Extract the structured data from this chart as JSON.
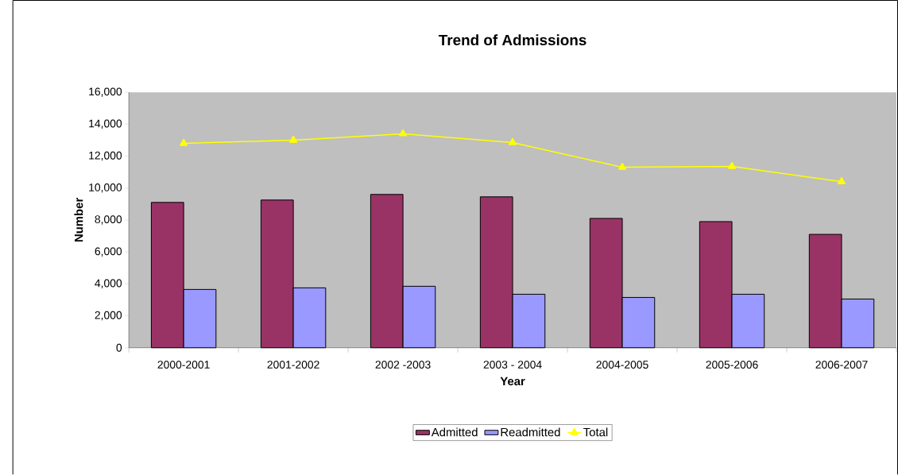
{
  "chart_data": {
    "type": "bar",
    "title": "Trend of Admissions",
    "xlabel": "Year",
    "ylabel": "Number",
    "categories": [
      "2000-2001",
      "2001-2002",
      "2002 -2003",
      "2003 - 2004",
      "2004-2005",
      "2005-2006",
      "2006-2007"
    ],
    "series": [
      {
        "name": "Admitted",
        "color": "#993366",
        "values": [
          9100,
          9250,
          9600,
          9450,
          8100,
          7900,
          7100
        ]
      },
      {
        "name": "Readmitted",
        "color": "#9999ff",
        "values": [
          3650,
          3750,
          3850,
          3350,
          3150,
          3350,
          3050
        ]
      },
      {
        "name": "Total",
        "type": "line",
        "color": "#ffff00",
        "marker": "triangle",
        "values": [
          12800,
          13000,
          13400,
          12850,
          11300,
          11350,
          10400
        ]
      }
    ],
    "ylim": [
      0,
      16000
    ],
    "yticks": [
      0,
      {
        "value": 2000,
        "label": "2,000"
      },
      {
        "value": 4000,
        "label": "4,000"
      },
      {
        "value": 6000,
        "label": "6,000"
      },
      {
        "value": 8000,
        "label": "8,000"
      },
      {
        "value": 10000,
        "label": "10,000"
      },
      {
        "value": 12000,
        "label": "12,000"
      },
      {
        "value": 14000,
        "label": "14,000"
      },
      {
        "value": 16000,
        "label": "16,000"
      }
    ],
    "legend": "bottom"
  }
}
